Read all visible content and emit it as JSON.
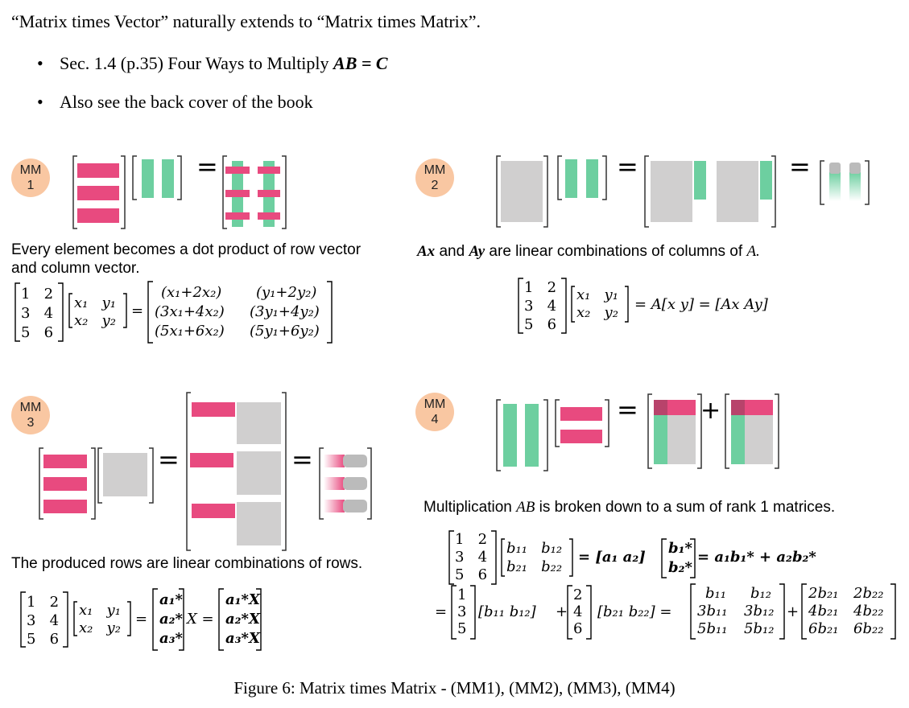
{
  "intro": "“Matrix times Vector” naturally extends to “Matrix times Matrix”.",
  "bullets": [
    {
      "text": "Sec. 1.4 (p.35) Four Ways to Multiply ",
      "math": "AB = C"
    },
    {
      "text": "Also see the back cover of the book",
      "math": ""
    }
  ],
  "panels": {
    "mm1": {
      "badge_top": "MM",
      "badge_bottom": "1",
      "caption_line1": "Every element becomes a dot product of row vector",
      "caption_line2": "and column vector."
    },
    "mm2": {
      "badge_top": "MM",
      "badge_bottom": "2",
      "caption_ax": "Ax",
      "caption_and": " and ",
      "caption_ay": "Ay",
      "caption_rest": "  are linear combinations of columns of ",
      "caption_a": "A."
    },
    "mm3": {
      "badge_top": "MM",
      "badge_bottom": "3",
      "caption": "The produced rows are linear combinations of rows."
    },
    "mm4": {
      "badge_top": "MM",
      "badge_bottom": "4",
      "caption_pre": "Multiplication ",
      "caption_ab": "AB",
      "caption_post": " is broken down to a sum of rank 1 matrices."
    }
  },
  "equations": {
    "mm1": {
      "a_rows": [
        [
          "1",
          "2"
        ],
        [
          "3",
          "4"
        ],
        [
          "5",
          "6"
        ]
      ],
      "x_rows": [
        [
          "x₁",
          "y₁"
        ],
        [
          "x₂",
          "y₂"
        ]
      ],
      "result_rows": [
        [
          "(x₁+2x₂)",
          "(y₁+2y₂)"
        ],
        [
          "(3x₁+4x₂)",
          "(3y₁+4y₂)"
        ],
        [
          "(5x₁+6x₂)",
          "(5y₁+6y₂)"
        ]
      ]
    },
    "mm2": {
      "a_rows": [
        [
          "1",
          "2"
        ],
        [
          "3",
          "4"
        ],
        [
          "5",
          "6"
        ]
      ],
      "x_rows": [
        [
          "x₁",
          "y₁"
        ],
        [
          "x₂",
          "y₂"
        ]
      ],
      "rhs1": "= A[x   y] = [Ax   Ay]"
    },
    "mm3": {
      "a_rows": [
        [
          "1",
          "2"
        ],
        [
          "3",
          "4"
        ],
        [
          "5",
          "6"
        ]
      ],
      "x_rows": [
        [
          "x₁",
          "y₁"
        ],
        [
          "x₂",
          "y₂"
        ]
      ],
      "astar": [
        "a₁*",
        "a₂*",
        "a₃*"
      ],
      "astarx": [
        "a₁*X",
        "a₂*X",
        "a₃*X"
      ],
      "x_label": "X"
    },
    "mm4": {
      "a_rows": [
        [
          "1",
          "2"
        ],
        [
          "3",
          "4"
        ],
        [
          "5",
          "6"
        ]
      ],
      "b_rows": [
        [
          "b₁₁",
          "b₁₂"
        ],
        [
          "b₂₁",
          "b₂₂"
        ]
      ],
      "cols": "= [a₁    a₂]",
      "bstar": [
        "b₁*",
        "b₂*"
      ],
      "sum": "= a₁b₁* + a₂b₂*",
      "col1": [
        "1",
        "3",
        "5"
      ],
      "col2": [
        "2",
        "4",
        "6"
      ],
      "row1": "[b₁₁    b₁₂]",
      "row2": "[b₂₁    b₂₂]",
      "res1": [
        [
          "b₁₁",
          "b₁₂"
        ],
        [
          "3b₁₁",
          "3b₁₂"
        ],
        [
          "5b₁₁",
          "5b₁₂"
        ]
      ],
      "res2": [
        [
          "2b₂₁",
          "2b₂₂"
        ],
        [
          "4b₂₁",
          "4b₂₂"
        ],
        [
          "6b₂₁",
          "6b₂₂"
        ]
      ]
    }
  },
  "figure_caption": "Figure 6: Matrix times Matrix - (MM1), (MM2), (MM3), (MM4)",
  "colors": {
    "pink": "#e84a7f",
    "green": "#6dcfa0",
    "gray": "#d0cfcf",
    "badge": "#f9c7a2"
  }
}
